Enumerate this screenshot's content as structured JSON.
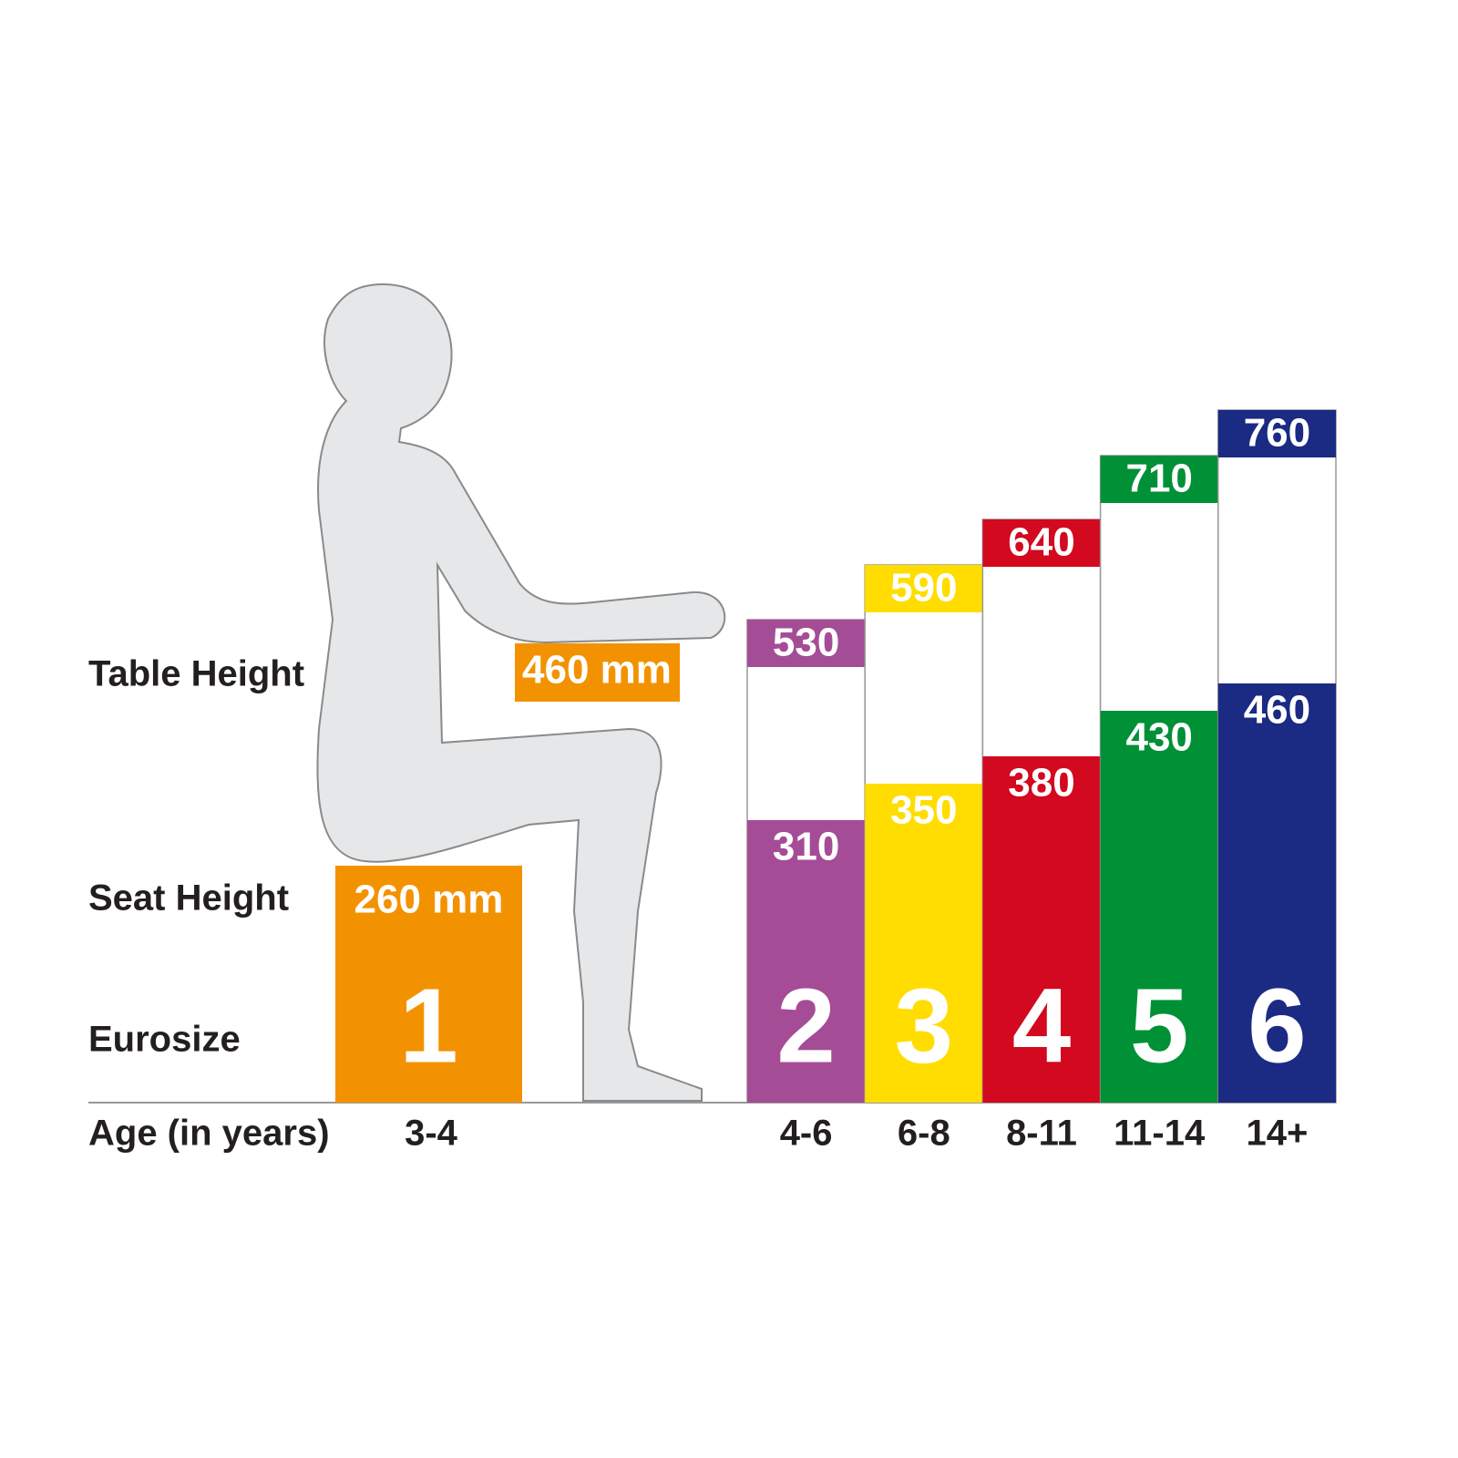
{
  "chart_data": {
    "type": "bar",
    "categories": [
      "3-4",
      "4-6",
      "6-8",
      "8-11",
      "11-14",
      "14+"
    ],
    "sizes": [
      1,
      2,
      3,
      4,
      5,
      6
    ],
    "colors": [
      "#f39200",
      "#a54c96",
      "#ffdd00",
      "#d2091f",
      "#009036",
      "#1b2a82"
    ],
    "size_label": "Eurosize",
    "age_label": "Age (in years)",
    "series": [
      {
        "name": "Seat Height",
        "values": [
          260,
          310,
          350,
          380,
          430,
          460
        ],
        "value_labels": [
          "260 mm",
          "310",
          "350",
          "380",
          "430",
          "460"
        ]
      },
      {
        "name": "Table Height",
        "values": [
          460,
          530,
          590,
          640,
          710,
          760
        ],
        "value_labels": [
          "460 mm",
          "530",
          "590",
          "640",
          "710",
          "760"
        ]
      }
    ]
  }
}
